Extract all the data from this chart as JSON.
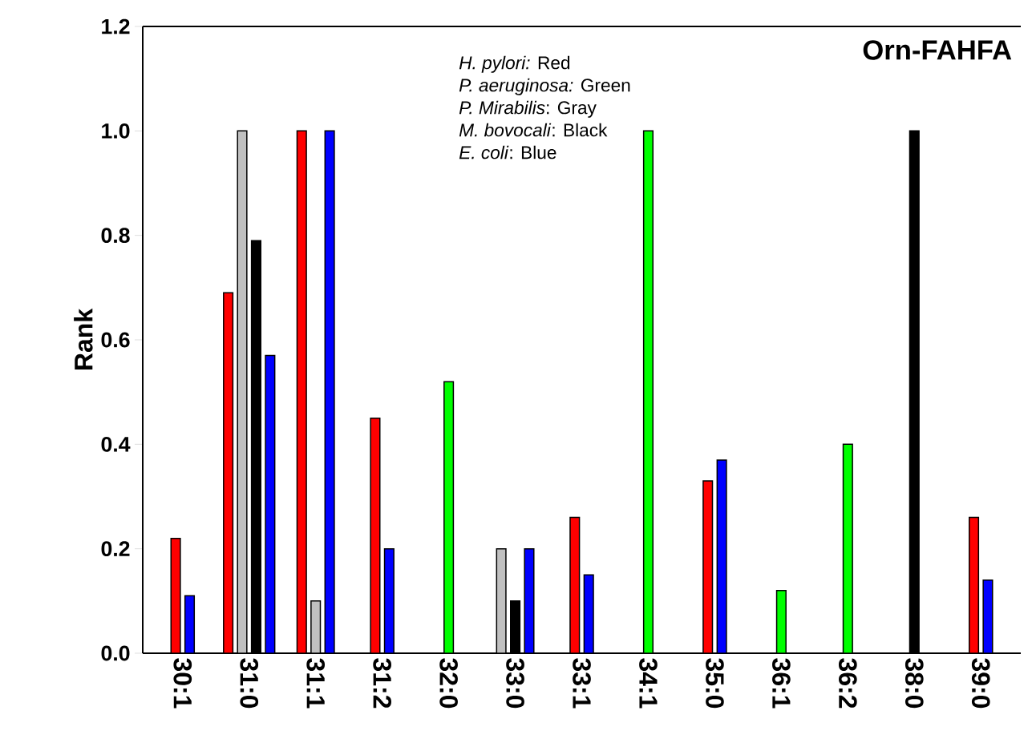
{
  "chart_data": {
    "type": "bar",
    "title": "Orn-FAHFA",
    "ylabel": "Rank",
    "categories": [
      "30:1",
      "31:0",
      "31:1",
      "31:2",
      "32:0",
      "33:0",
      "33:1",
      "34:1",
      "35:0",
      "36:1",
      "36:2",
      "38:0",
      "39:0"
    ],
    "series": [
      {
        "color": "#ff0000",
        "values": [
          0.22,
          0.69,
          1.0,
          0.45,
          null,
          null,
          0.26,
          null,
          0.33,
          null,
          null,
          null,
          0.26
        ]
      },
      {
        "color": "#00ff00",
        "values": [
          null,
          null,
          null,
          null,
          0.52,
          null,
          null,
          1.0,
          null,
          0.12,
          0.4,
          null,
          null
        ]
      },
      {
        "color": "#c0c0c0",
        "values": [
          null,
          1.0,
          0.1,
          null,
          null,
          0.2,
          null,
          null,
          null,
          null,
          null,
          null,
          null
        ]
      },
      {
        "color": "#000000",
        "values": [
          null,
          0.79,
          null,
          null,
          null,
          0.1,
          null,
          null,
          null,
          null,
          null,
          1.0,
          null
        ]
      },
      {
        "color": "#0000ff",
        "values": [
          0.11,
          0.57,
          1.0,
          0.2,
          null,
          0.2,
          0.15,
          null,
          0.37,
          null,
          null,
          null,
          0.14
        ]
      }
    ],
    "ylim": [
      0,
      1.2
    ],
    "yticks": [
      {
        "value": 0,
        "label": "0.0"
      },
      0.2,
      0.4,
      0.6,
      0.8,
      {
        "value": 1,
        "label": "1.0"
      },
      1.2
    ],
    "annotations": [
      "*H. pylori:* Red",
      "*P. aeruginosa:* Green",
      "*P. Mirabilis*: Gray",
      "*M. bovocali*: Black",
      "*E. coli*: Blue"
    ]
  }
}
